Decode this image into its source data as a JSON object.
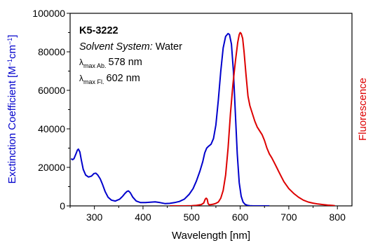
{
  "chart_data": {
    "type": "line",
    "xlabel": "Wavelength [nm]",
    "ylabel": "Exctinction Coefficient [M",
    "ylabel_sup1": "−1",
    "ylabel_mid": "cm",
    "ylabel_sup2": "−1",
    "ylabel_end": "]",
    "y2label": "Fluorescence",
    "xlim": [
      250,
      830
    ],
    "ylim": [
      0,
      100000
    ],
    "xticks": [
      300,
      400,
      500,
      600,
      700,
      800
    ],
    "yticks": [
      0,
      20000,
      40000,
      60000,
      80000,
      100000
    ],
    "grid": false,
    "colors": {
      "absorption": "#0000cc",
      "fluorescence": "#dd0000",
      "ylabel": "#0000cc",
      "y2label": "#dd0000"
    },
    "annotation": {
      "compound": "K5-3222",
      "solvent_label": "Solvent System:",
      "solvent_value": "Water",
      "lambda": "λ",
      "abs_sub": "max Ab.",
      "abs_value": "578 nm",
      "fl_sub": "max Fl.",
      "fl_value": "602 nm"
    },
    "series": [
      {
        "x": [
          252,
          255,
          258,
          262,
          265,
          267,
          270,
          273,
          277,
          282,
          288,
          294,
          299,
          303,
          307,
          312,
          317,
          322,
          328,
          335,
          343,
          352,
          358,
          363,
          367,
          370,
          374,
          379,
          386,
          395,
          405,
          415,
          425,
          435,
          445,
          455,
          465,
          475,
          485,
          495,
          503,
          510,
          517,
          523,
          527,
          531,
          535,
          540,
          545,
          550,
          555,
          560,
          565,
          570,
          575,
          578,
          582,
          586,
          590,
          594,
          598,
          602,
          606,
          610,
          615,
          620,
          625,
          630,
          640,
          650,
          660
        ],
        "values": [
          24500,
          24000,
          24500,
          27000,
          29000,
          29500,
          28000,
          24000,
          19000,
          16000,
          15000,
          15500,
          16800,
          17000,
          16000,
          14000,
          11000,
          7500,
          4500,
          3000,
          2500,
          3500,
          5000,
          6500,
          7500,
          7800,
          6800,
          4500,
          2500,
          1700,
          1700,
          1900,
          2100,
          1700,
          1200,
          1300,
          1700,
          2300,
          3500,
          6000,
          9000,
          13000,
          18000,
          23000,
          27500,
          30000,
          31000,
          32000,
          35000,
          42000,
          55000,
          70000,
          82000,
          88000,
          89500,
          89000,
          84000,
          70000,
          48000,
          27000,
          12000,
          5000,
          2000,
          800,
          300,
          100,
          50,
          0,
          0,
          0,
          0
        ]
      },
      {
        "x": [
          455,
          470,
          485,
          500,
          510,
          520,
          525,
          528,
          530,
          532,
          534,
          536,
          540,
          545,
          550,
          555,
          560,
          565,
          570,
          575,
          580,
          585,
          590,
          595,
          598,
          600,
          602,
          605,
          608,
          612,
          616,
          620,
          625,
          630,
          635,
          640,
          645,
          650,
          655,
          660,
          665,
          670,
          675,
          680,
          685,
          690,
          700,
          710,
          720,
          730,
          740,
          750,
          760,
          770,
          780,
          790,
          795
        ],
        "values": [
          0,
          0,
          0,
          100,
          300,
          700,
          1500,
          3500,
          4000,
          3500,
          1200,
          600,
          700,
          900,
          1300,
          2000,
          4000,
          8000,
          16000,
          30000,
          48000,
          63000,
          75000,
          85000,
          89000,
          90000,
          89500,
          87000,
          80000,
          68000,
          57000,
          52000,
          48000,
          44000,
          41000,
          39000,
          37000,
          34000,
          30000,
          27000,
          25000,
          22500,
          20000,
          17500,
          15000,
          12500,
          9000,
          6500,
          4500,
          3000,
          2000,
          1400,
          1000,
          700,
          400,
          200,
          100
        ]
      }
    ]
  }
}
